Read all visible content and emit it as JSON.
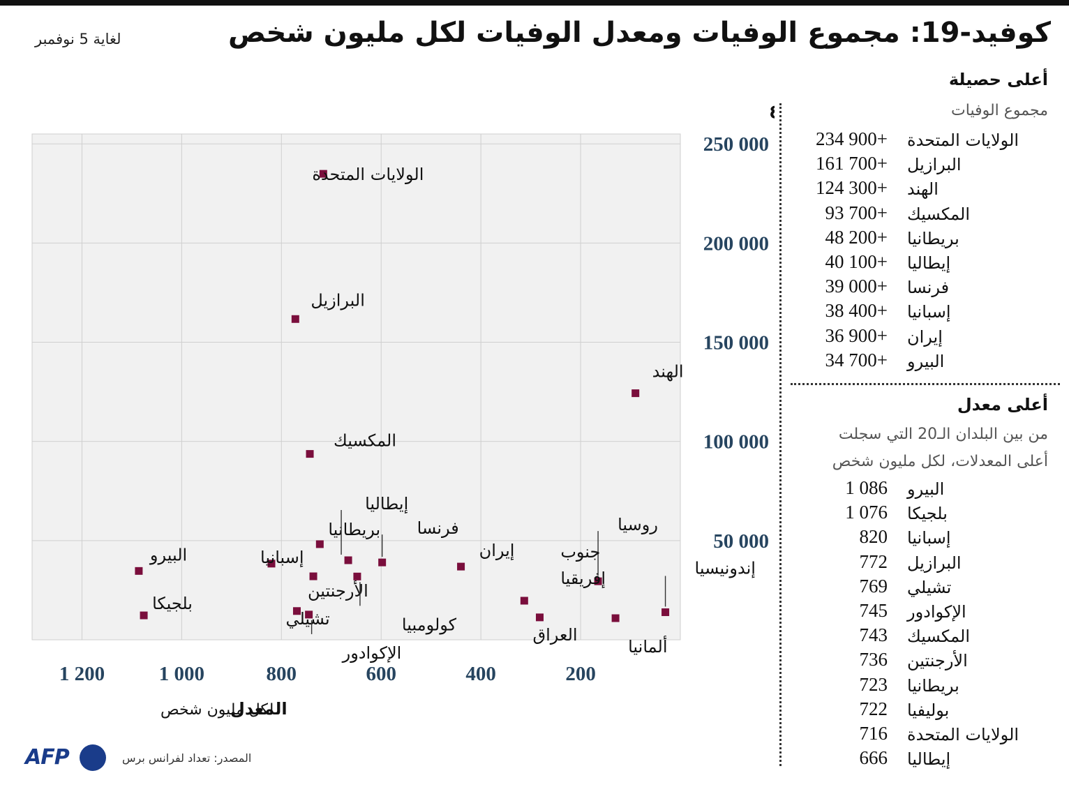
{
  "title": "كوفيد-19: مجموع الوفيات ومعدل الوفيات لكل مليون شخص",
  "date": "لغاية 5 نوفمبر",
  "source": "المصدر: تعداد لفرانس برس",
  "logo": "AFP",
  "colors": {
    "marker": "#7a0e3c",
    "tick": "#26445f",
    "plot_bg": "#f1f1f1",
    "grid": "#cfcfcf",
    "logo": "#1a3c8a"
  },
  "chart_data": {
    "type": "scatter",
    "ylabel": "المجموع",
    "xlabel": "المعدل",
    "xlabel_sub": "لكل مليون شخص",
    "x_reversed": true,
    "xlim": [
      1300,
      0
    ],
    "ylim": [
      0,
      255000
    ],
    "xticks": [
      1200,
      1000,
      800,
      600,
      400,
      200
    ],
    "xtick_labels": [
      "1 200",
      "1 000",
      "800",
      "600",
      "400",
      "200"
    ],
    "yticks": [
      50000,
      100000,
      150000,
      200000,
      250000
    ],
    "ytick_labels": [
      "50 000",
      "100 000",
      "150 000",
      "200 000",
      "250 000"
    ],
    "grid": true,
    "points": [
      {
        "label": "الولايات المتحدة",
        "x": 716,
        "y": 234900
      },
      {
        "label": "البرازيل",
        "x": 772,
        "y": 161700
      },
      {
        "label": "الهند",
        "x": 90,
        "y": 124300
      },
      {
        "label": "المكسيك",
        "x": 743,
        "y": 93700
      },
      {
        "label": "بريطانيا",
        "x": 723,
        "y": 48200
      },
      {
        "label": "إيطاليا",
        "x": 666,
        "y": 40100
      },
      {
        "label": "فرنسا",
        "x": 598,
        "y": 39000
      },
      {
        "label": "إسبانيا",
        "x": 820,
        "y": 38400
      },
      {
        "label": "إيران",
        "x": 440,
        "y": 36900
      },
      {
        "label": "البيرو",
        "x": 1086,
        "y": 34700
      },
      {
        "label": "الأرجنتين",
        "x": 736,
        "y": 32000
      },
      {
        "label": "كولومبيا",
        "x": 648,
        "y": 31900
      },
      {
        "label": "روسيا",
        "x": 165,
        "y": 29500
      },
      {
        "label": "جنوب إفريقيا",
        "x": 313,
        "y": 19700
      },
      {
        "label": "إندونيسيا",
        "x": 30,
        "y": 13900
      },
      {
        "label": "تشيلي",
        "x": 769,
        "y": 14500
      },
      {
        "label": "الإكوادور",
        "x": 745,
        "y": 12700
      },
      {
        "label": "بلجيكا",
        "x": 1076,
        "y": 12300
      },
      {
        "label": "العراق",
        "x": 282,
        "y": 11300
      },
      {
        "label": "ألمانيا",
        "x": 130,
        "y": 10900
      }
    ]
  },
  "panel_total": {
    "title": "أعلى حصيلة",
    "subtitle": "مجموع الوفيات",
    "rows": [
      {
        "name": "الولايات المتحدة",
        "value": "234 900+"
      },
      {
        "name": "البرازيل",
        "value": "161 700+"
      },
      {
        "name": "الهند",
        "value": "124 300+"
      },
      {
        "name": "المكسيك",
        "value": "93 700+"
      },
      {
        "name": "بريطانيا",
        "value": "48 200+"
      },
      {
        "name": "إيطاليا",
        "value": "40 100+"
      },
      {
        "name": "فرنسا",
        "value": "39 000+"
      },
      {
        "name": "إسبانيا",
        "value": "38 400+"
      },
      {
        "name": "إيران",
        "value": "36 900+"
      },
      {
        "name": "البيرو",
        "value": "34 700+"
      }
    ]
  },
  "panel_rate": {
    "title": "أعلى معدل",
    "subtitle_line1": "من بين البلدان الـ20 التي سجلت",
    "subtitle_line2": "أعلى المعدلات، لكل مليون شخص",
    "rows": [
      {
        "name": "البيرو",
        "value": "1 086"
      },
      {
        "name": "بلجيكا",
        "value": "1 076"
      },
      {
        "name": "إسبانيا",
        "value": "820"
      },
      {
        "name": "البرازيل",
        "value": "772"
      },
      {
        "name": "تشيلي",
        "value": "769"
      },
      {
        "name": "الإكوادور",
        "value": "745"
      },
      {
        "name": "المكسيك",
        "value": "743"
      },
      {
        "name": "الأرجنتين",
        "value": "736"
      },
      {
        "name": "بريطانيا",
        "value": "723"
      },
      {
        "name": "بوليفيا",
        "value": "722"
      },
      {
        "name": "الولايات المتحدة",
        "value": "716"
      },
      {
        "name": "إيطاليا",
        "value": "666"
      }
    ]
  }
}
